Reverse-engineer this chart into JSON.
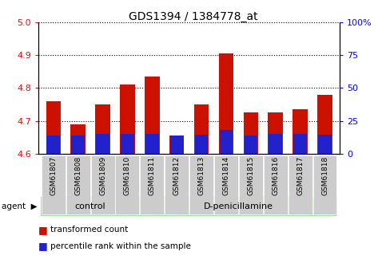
{
  "title": "GDS1394 / 1384778_at",
  "samples": [
    "GSM61807",
    "GSM61808",
    "GSM61809",
    "GSM61810",
    "GSM61811",
    "GSM61812",
    "GSM61813",
    "GSM61814",
    "GSM61815",
    "GSM61816",
    "GSM61817",
    "GSM61818"
  ],
  "red_values": [
    4.76,
    4.69,
    4.75,
    4.81,
    4.835,
    4.655,
    4.75,
    4.905,
    4.725,
    4.725,
    4.735,
    4.78
  ],
  "blue_values": [
    4.655,
    4.655,
    4.66,
    4.66,
    4.66,
    4.655,
    4.658,
    4.672,
    4.655,
    4.66,
    4.66,
    4.658
  ],
  "ylim_left": [
    4.6,
    5.0
  ],
  "ylim_right": [
    0,
    100
  ],
  "yticks_left": [
    4.6,
    4.7,
    4.8,
    4.9,
    5.0
  ],
  "yticks_right": [
    0,
    25,
    50,
    75,
    100
  ],
  "ytick_right_labels": [
    "0",
    "25",
    "50",
    "75",
    "100%"
  ],
  "n_control": 4,
  "control_label": "control",
  "treatment_label": "D-penicillamine",
  "agent_label": "agent",
  "red_color": "#cc1100",
  "blue_color": "#2222cc",
  "bar_width": 0.6,
  "group_bg_color": "#90ee90",
  "tick_label_bg": "#cccccc",
  "legend_red": "transformed count",
  "legend_blue": "percentile rank within the sample"
}
